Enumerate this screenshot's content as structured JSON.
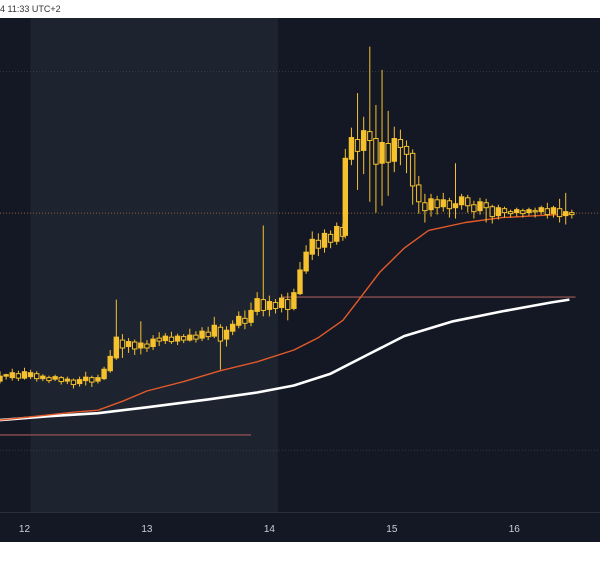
{
  "header": {
    "timestamp": "4 11:33 UTC+2"
  },
  "colors": {
    "background": "#141824",
    "highlight_band": "#1e2330",
    "candle": "#f5c12e",
    "ma_short": "#e25a2a",
    "ma_long": "#ffffff",
    "guide_line": "#8a4f4f",
    "price_line": "#b07a2a"
  },
  "chart_data": {
    "type": "candlestick",
    "title": "",
    "xlabel": "",
    "ylabel": "",
    "x_tick_labels": [
      "12",
      "13",
      "14",
      "15",
      "16"
    ],
    "x_tick_days": [
      12,
      13,
      14,
      15,
      16
    ],
    "xlim": [
      11.8,
      16.7
    ],
    "ylim": [
      0,
      100
    ],
    "highlight_range": [
      12.05,
      14.07
    ],
    "reference_lines": [
      {
        "name": "current-price",
        "y": 60.5,
        "style": "dotted"
      },
      {
        "name": "upper-dotted",
        "y": 89.2,
        "style": "dotted"
      },
      {
        "name": "lower-dotted",
        "y": 12.5,
        "style": "dotted"
      },
      {
        "name": "level-1",
        "y": 43.5,
        "x_from": 14.1,
        "x_to": 16.5,
        "style": "solid"
      },
      {
        "name": "level-2",
        "y": 15.6,
        "x_from": 11.8,
        "x_to": 13.85,
        "style": "solid"
      }
    ],
    "ma_short": [
      [
        11.8,
        18.6
      ],
      [
        12.1,
        19.4
      ],
      [
        12.4,
        20.2
      ],
      [
        12.6,
        20.6
      ],
      [
        12.8,
        22.4
      ],
      [
        13.0,
        24.5
      ],
      [
        13.3,
        26.4
      ],
      [
        13.6,
        28.6
      ],
      [
        13.9,
        30.4
      ],
      [
        14.2,
        32.8
      ],
      [
        14.4,
        35.3
      ],
      [
        14.6,
        38.8
      ],
      [
        14.75,
        43.6
      ],
      [
        14.9,
        48.5
      ],
      [
        15.1,
        53.4
      ],
      [
        15.3,
        57.0
      ],
      [
        15.6,
        58.6
      ],
      [
        15.9,
        59.6
      ],
      [
        16.2,
        60.0
      ],
      [
        16.45,
        60.3
      ]
    ],
    "ma_long": [
      [
        11.8,
        18.6
      ],
      [
        12.2,
        19.4
      ],
      [
        12.6,
        20.0
      ],
      [
        13.0,
        21.2
      ],
      [
        13.5,
        22.8
      ],
      [
        13.9,
        24.2
      ],
      [
        14.2,
        25.6
      ],
      [
        14.5,
        28.0
      ],
      [
        14.8,
        31.8
      ],
      [
        15.1,
        35.6
      ],
      [
        15.5,
        38.6
      ],
      [
        15.9,
        40.6
      ],
      [
        16.3,
        42.4
      ],
      [
        16.45,
        43.0
      ]
    ],
    "candles": [
      [
        11.8,
        26.5,
        27.5,
        26.0,
        28.5
      ],
      [
        11.85,
        27.5,
        27.8,
        26.8,
        28.0
      ],
      [
        11.9,
        27.2,
        28.2,
        26.6,
        29.0
      ],
      [
        11.95,
        28.0,
        27.1,
        26.5,
        28.6
      ],
      [
        12.0,
        27.1,
        28.4,
        26.8,
        29.2
      ],
      [
        12.05,
        27.4,
        28.2,
        26.9,
        28.8
      ],
      [
        12.1,
        28.0,
        27.0,
        26.4,
        28.5
      ],
      [
        12.15,
        27.0,
        27.5,
        26.5,
        27.9
      ],
      [
        12.2,
        27.2,
        26.6,
        26.1,
        27.6
      ],
      [
        12.25,
        26.9,
        27.4,
        26.5,
        27.8
      ],
      [
        12.3,
        27.2,
        26.4,
        25.8,
        27.5
      ],
      [
        12.35,
        26.5,
        26.9,
        25.9,
        27.4
      ],
      [
        12.4,
        26.7,
        25.8,
        25.0,
        27.0
      ],
      [
        12.45,
        26.0,
        26.8,
        25.4,
        27.4
      ],
      [
        12.5,
        26.6,
        27.3,
        25.6,
        28.4
      ],
      [
        12.55,
        27.2,
        26.3,
        25.3,
        27.6
      ],
      [
        12.6,
        26.5,
        27.2,
        26.0,
        27.8
      ],
      [
        12.65,
        27.0,
        28.9,
        26.7,
        29.4
      ],
      [
        12.7,
        28.6,
        31.5,
        28.2,
        32.8
      ],
      [
        12.75,
        31.2,
        35.4,
        30.8,
        43.0
      ],
      [
        12.8,
        34.8,
        33.2,
        31.2,
        36.0
      ],
      [
        12.85,
        33.5,
        34.5,
        32.2,
        35.2
      ],
      [
        12.9,
        34.4,
        33.0,
        31.8,
        34.9
      ],
      [
        12.95,
        33.2,
        34.2,
        31.9,
        38.6
      ],
      [
        13.0,
        34.0,
        33.2,
        32.4,
        34.8
      ],
      [
        13.05,
        33.5,
        35.0,
        32.8,
        35.8
      ],
      [
        13.1,
        35.2,
        34.6,
        33.6,
        36.4
      ],
      [
        13.15,
        34.7,
        35.6,
        34.0,
        36.2
      ],
      [
        13.2,
        35.4,
        34.5,
        34.0,
        36.5
      ],
      [
        13.25,
        34.6,
        35.6,
        33.8,
        36.1
      ],
      [
        13.3,
        35.5,
        34.8,
        34.2,
        36.0
      ],
      [
        13.35,
        34.8,
        35.8,
        34.5,
        37.1
      ],
      [
        13.4,
        35.8,
        35.0,
        34.3,
        36.6
      ],
      [
        13.45,
        35.2,
        36.6,
        34.6,
        37.4
      ],
      [
        13.5,
        36.4,
        35.5,
        34.8,
        37.5
      ],
      [
        13.55,
        35.6,
        37.8,
        35.2,
        39.5
      ],
      [
        13.6,
        37.4,
        34.6,
        28.8,
        38.0
      ],
      [
        13.65,
        35.0,
        36.8,
        33.5,
        37.6
      ],
      [
        13.7,
        36.6,
        38.0,
        35.8,
        38.8
      ],
      [
        13.75,
        37.8,
        39.6,
        37.2,
        40.6
      ],
      [
        13.8,
        39.2,
        38.2,
        37.0,
        40.8
      ],
      [
        13.85,
        38.4,
        40.8,
        37.6,
        42.4
      ],
      [
        13.9,
        40.6,
        43.2,
        39.8,
        44.5
      ],
      [
        13.95,
        43.0,
        40.8,
        39.6,
        58.0
      ],
      [
        14.0,
        41.0,
        42.6,
        39.6,
        43.8
      ],
      [
        14.05,
        42.4,
        41.2,
        40.2,
        43.1
      ],
      [
        14.1,
        41.4,
        43.3,
        40.4,
        44.1
      ],
      [
        14.15,
        43.0,
        41.0,
        38.8,
        44.4
      ],
      [
        14.2,
        41.2,
        44.4,
        40.8,
        45.2
      ],
      [
        14.25,
        44.2,
        49.0,
        43.9,
        50.6
      ],
      [
        14.3,
        48.8,
        52.6,
        48.2,
        54.0
      ],
      [
        14.35,
        52.2,
        55.2,
        51.0,
        56.8
      ],
      [
        14.4,
        55.0,
        53.4,
        51.8,
        56.4
      ],
      [
        14.45,
        53.6,
        56.4,
        52.5,
        57.2
      ],
      [
        14.5,
        56.2,
        54.6,
        53.4,
        57.0
      ],
      [
        14.55,
        54.8,
        57.8,
        54.1,
        58.6
      ],
      [
        14.6,
        57.6,
        55.8,
        54.9,
        58.4
      ],
      [
        14.62,
        56.0,
        71.6,
        55.4,
        73.5
      ],
      [
        14.67,
        71.4,
        75.8,
        70.2,
        77.8
      ],
      [
        14.72,
        75.4,
        73.0,
        65.2,
        84.8
      ],
      [
        14.77,
        73.2,
        77.2,
        68.4,
        80.0
      ],
      [
        14.82,
        77.0,
        75.2,
        62.8,
        94.2
      ],
      [
        14.87,
        75.6,
        70.4,
        60.6,
        82.4
      ],
      [
        14.92,
        70.6,
        74.8,
        62.0,
        89.5
      ],
      [
        14.97,
        74.6,
        70.8,
        64.0,
        81.2
      ],
      [
        15.02,
        71.0,
        75.6,
        68.8,
        78.0
      ],
      [
        15.07,
        75.4,
        73.8,
        70.2,
        77.4
      ],
      [
        15.12,
        74.0,
        72.4,
        68.6,
        75.2
      ],
      [
        15.17,
        72.6,
        66.0,
        62.2,
        73.4
      ],
      [
        15.22,
        66.2,
        62.8,
        60.4,
        68.0
      ],
      [
        15.27,
        62.6,
        61.0,
        58.6,
        64.4
      ],
      [
        15.32,
        61.2,
        63.4,
        59.8,
        64.4
      ],
      [
        15.37,
        63.2,
        61.6,
        60.2,
        64.0
      ],
      [
        15.42,
        61.8,
        63.2,
        60.8,
        64.6
      ],
      [
        15.47,
        63.0,
        61.4,
        59.6,
        63.6
      ],
      [
        15.52,
        61.6,
        62.4,
        59.4,
        70.6
      ],
      [
        15.57,
        62.2,
        63.8,
        61.2,
        64.4
      ],
      [
        15.62,
        63.6,
        62.0,
        60.6,
        64.2
      ],
      [
        15.67,
        62.2,
        60.8,
        59.4,
        63.0
      ],
      [
        15.72,
        61.0,
        62.8,
        60.2,
        63.6
      ],
      [
        15.77,
        62.6,
        61.6,
        58.6,
        63.4
      ],
      [
        15.82,
        61.8,
        59.8,
        58.4,
        62.2
      ],
      [
        15.87,
        60.0,
        61.6,
        59.2,
        62.2
      ],
      [
        15.92,
        61.4,
        60.6,
        59.6,
        61.8
      ],
      [
        15.97,
        60.8,
        60.4,
        59.6,
        61.2
      ],
      [
        16.02,
        60.6,
        61.2,
        59.8,
        61.6
      ],
      [
        16.07,
        61.0,
        60.4,
        59.6,
        61.4
      ],
      [
        16.12,
        60.6,
        61.2,
        60.0,
        61.6
      ],
      [
        16.17,
        61.0,
        60.8,
        59.6,
        61.6
      ],
      [
        16.22,
        60.8,
        61.6,
        60.2,
        62.0
      ],
      [
        16.27,
        61.4,
        60.2,
        59.4,
        62.6
      ],
      [
        16.32,
        60.4,
        61.6,
        59.6,
        62.0
      ],
      [
        16.37,
        61.4,
        59.8,
        58.6,
        63.4
      ],
      [
        16.42,
        60.0,
        60.8,
        58.2,
        64.6
      ],
      [
        16.47,
        60.6,
        60.2,
        59.4,
        61.2
      ]
    ]
  }
}
